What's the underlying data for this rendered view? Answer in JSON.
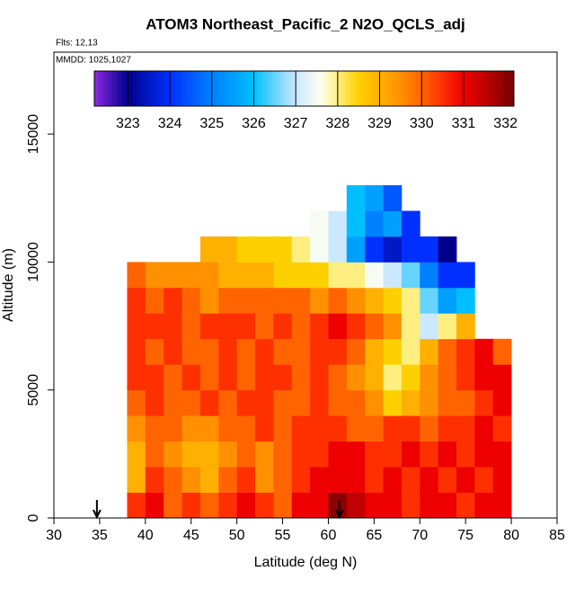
{
  "chart_data": {
    "type": "heatmap",
    "title": "ATOM3 Northeast_Pacific_2 N2O_QCLS_adj",
    "subtitle": "Flts: 12,13",
    "annotation": "MMDD: 1025,1027",
    "x_label": "Latitude (deg N)",
    "y_label": "Altitude (m)",
    "xlim": [
      30,
      85
    ],
    "xticks": [
      30,
      35,
      40,
      45,
      50,
      55,
      60,
      65,
      70,
      75,
      80,
      85
    ],
    "ylim": [
      0,
      18200
    ],
    "yticks": [
      0,
      5000,
      10000,
      15000
    ],
    "clim": [
      322.2,
      332.2
    ],
    "cticks": [
      323,
      324,
      325,
      326,
      327,
      328,
      329,
      330,
      331,
      332
    ],
    "colorscale": [
      [
        322.2,
        "#8a2be2"
      ],
      [
        323,
        "#00008b"
      ],
      [
        324,
        "#0030ff"
      ],
      [
        325,
        "#0080ff"
      ],
      [
        326,
        "#00bfff"
      ],
      [
        327,
        "#cce8ff"
      ],
      [
        327.6,
        "#fffff0"
      ],
      [
        328,
        "#ffef80"
      ],
      [
        328.5,
        "#ffd000"
      ],
      [
        329,
        "#ffb000"
      ],
      [
        329.5,
        "#ff9000"
      ],
      [
        330,
        "#ff6400"
      ],
      [
        330.5,
        "#ff3000"
      ],
      [
        331,
        "#ee0000"
      ],
      [
        331.5,
        "#c00000"
      ],
      [
        332.2,
        "#7a0000"
      ]
    ],
    "markers": [
      34.7,
      61.2
    ],
    "xbins": [
      38,
      40,
      42,
      44,
      46,
      48,
      50,
      52,
      54,
      56,
      58,
      60,
      62,
      64,
      66,
      68,
      70,
      72,
      74,
      76,
      78,
      80
    ],
    "ybins": [
      0,
      1000,
      2000,
      3000,
      4000,
      5000,
      6000,
      7000,
      8000,
      9000,
      10000,
      11000,
      12000,
      13000
    ],
    "z": [
      [
        330.5,
        331,
        330,
        330.5,
        330,
        330.5,
        331,
        330.5,
        330,
        331,
        331,
        332,
        331.5,
        331,
        331,
        330.5,
        331,
        331,
        330.5,
        331,
        331
      ],
      [
        329,
        330.5,
        330,
        329.5,
        329,
        330,
        330.5,
        329.5,
        330,
        330.5,
        331,
        331,
        331,
        330.5,
        331,
        330.5,
        331,
        330.5,
        331,
        330.5,
        331
      ],
      [
        329,
        330,
        329.5,
        329,
        329,
        329.5,
        330,
        329.5,
        330,
        330.5,
        330.5,
        331,
        331,
        330.5,
        330.5,
        331,
        330.5,
        331,
        330.5,
        331,
        331
      ],
      [
        329.5,
        330,
        330,
        329.5,
        329.5,
        330,
        330,
        330.5,
        330,
        330.5,
        330.5,
        330.5,
        330,
        330,
        330.5,
        330.5,
        330,
        330.5,
        330.5,
        331,
        330.5
      ],
      [
        330,
        330.5,
        330,
        330,
        330.5,
        330,
        330.5,
        330.5,
        330,
        330,
        330.5,
        330,
        330,
        329.5,
        328.5,
        329,
        329.5,
        330,
        330,
        330.5,
        331
      ],
      [
        330.5,
        330.5,
        330,
        330.5,
        330,
        330.5,
        330,
        330.5,
        330.5,
        330,
        330.5,
        330,
        329.5,
        329,
        328,
        328.5,
        329.5,
        330,
        330.5,
        331,
        331
      ],
      [
        330.5,
        330,
        330.5,
        330,
        330,
        330.5,
        330,
        330.5,
        330,
        330,
        330.5,
        330.5,
        330,
        329,
        328.5,
        328,
        329,
        330,
        330.5,
        331,
        330
      ],
      [
        330.5,
        330.5,
        330.5,
        330,
        330.5,
        330.5,
        330.5,
        330,
        330.5,
        330,
        330.5,
        331,
        330.5,
        330,
        329.5,
        328,
        327,
        328,
        329,
        null,
        null
      ],
      [
        330.5,
        330,
        330.5,
        330,
        329.5,
        330,
        330,
        330,
        330,
        330,
        329.5,
        330,
        329.5,
        329,
        328.5,
        328,
        326.5,
        325.5,
        326,
        null,
        null
      ],
      [
        330,
        329.5,
        329.5,
        329.5,
        329.5,
        329,
        329,
        329,
        328.5,
        328.5,
        328.5,
        328,
        328,
        327.5,
        327,
        326.5,
        325,
        324,
        324,
        null,
        null
      ],
      [
        null,
        null,
        null,
        null,
        329,
        329,
        328.5,
        328.5,
        328.5,
        328,
        327.5,
        327,
        325.5,
        324,
        323.5,
        324,
        324,
        323,
        null,
        null,
        null
      ],
      [
        null,
        null,
        null,
        null,
        null,
        null,
        null,
        null,
        null,
        null,
        327.5,
        327,
        326,
        325,
        325.5,
        324,
        null,
        null,
        null,
        null,
        null
      ],
      [
        null,
        null,
        null,
        null,
        null,
        null,
        null,
        null,
        null,
        null,
        null,
        null,
        326,
        325.5,
        324.5,
        null,
        null,
        null,
        null,
        null,
        null
      ]
    ]
  }
}
